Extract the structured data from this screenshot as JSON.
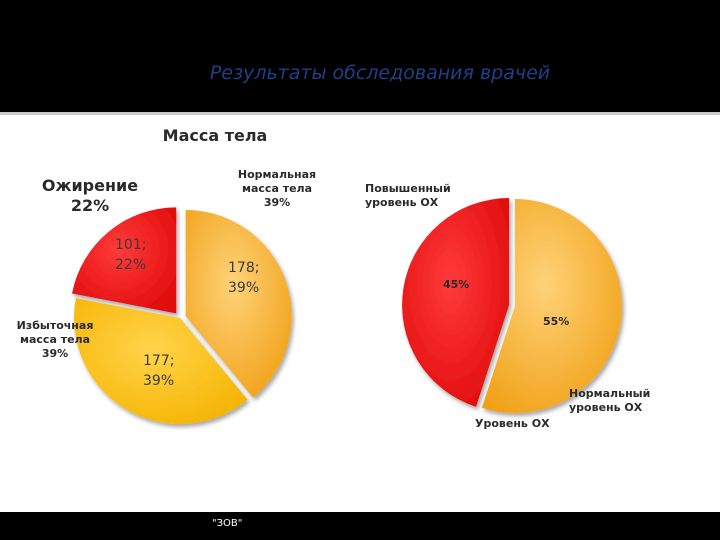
{
  "slide": {
    "title": "Результаты обследования врачей",
    "footer": "\"ЗОВ\""
  },
  "chart_data": [
    {
      "type": "pie",
      "title": "Масса тела",
      "slices": [
        {
          "label_lines": [
            "Нормальная",
            "масса тела",
            "39%"
          ],
          "value": 178,
          "percent": 39,
          "data_label": [
            "178;",
            "39%"
          ],
          "color": "#f6ad2e",
          "exploded": true
        },
        {
          "label_lines": [
            "Избыточная",
            "масса тела",
            "39%"
          ],
          "value": 177,
          "percent": 39,
          "data_label": [
            "177;",
            "39%"
          ],
          "color": "#fcbd11",
          "exploded": false
        },
        {
          "label_lines": [
            "Ожирение",
            "22%"
          ],
          "value": 101,
          "percent": 22,
          "data_label": [
            "101;",
            "22%"
          ],
          "color": "#ee1c1c",
          "exploded": true
        }
      ]
    },
    {
      "type": "pie",
      "title": "",
      "slices": [
        {
          "label_lines": [
            "Нормальный",
            "уровень  ОХ"
          ],
          "percent": 55,
          "data_label": [
            "55%"
          ],
          "color": "#f6ad2e",
          "exploded": false
        },
        {
          "label_lines": [
            "Повышенный",
            "уровень ОХ"
          ],
          "percent": 45,
          "data_label": [
            "45%"
          ],
          "color": "#ee1c1c",
          "exploded": true
        }
      ],
      "footnote": "Уровень ОХ"
    }
  ],
  "colors": {
    "background": "#000000",
    "title": "#1f3f86",
    "panel": "#ffffff"
  }
}
